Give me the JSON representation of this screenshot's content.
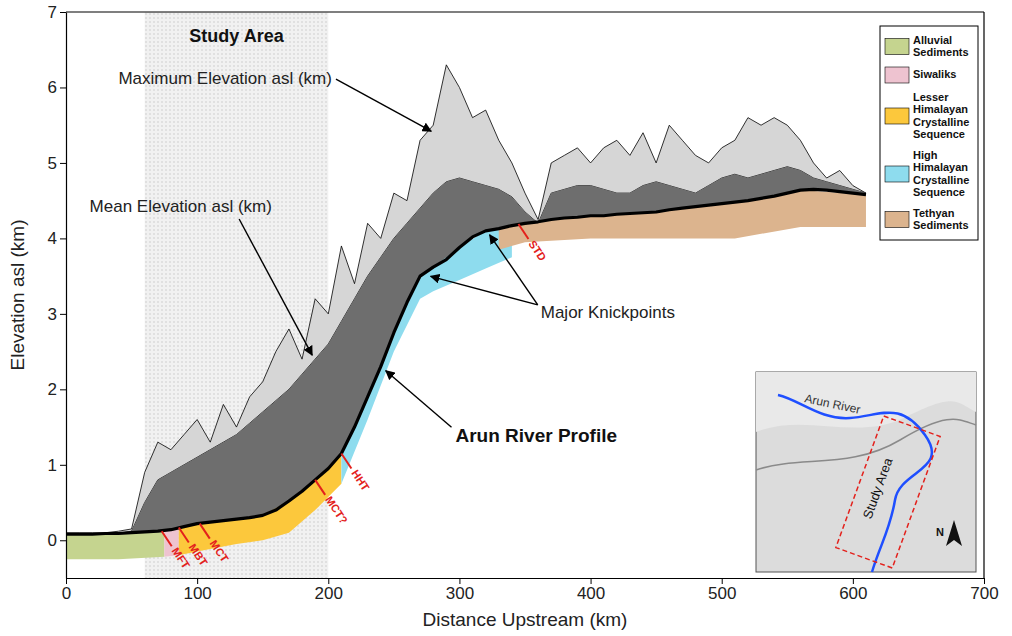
{
  "chart_data": {
    "type": "area",
    "xlabel": "Distance Upstream (km)",
    "ylabel": "Elevation asl (km)",
    "xlim": [
      0,
      700
    ],
    "ylim": [
      -0.5,
      7
    ],
    "xticks": [
      0,
      100,
      200,
      300,
      400,
      500,
      600,
      700
    ],
    "yticks": [
      0,
      1,
      2,
      3,
      4,
      5,
      6,
      7
    ],
    "legend": "top-right",
    "x": [
      0,
      10,
      20,
      30,
      40,
      50,
      60,
      70,
      80,
      90,
      100,
      110,
      120,
      130,
      140,
      150,
      160,
      170,
      180,
      190,
      200,
      210,
      220,
      230,
      240,
      250,
      260,
      270,
      280,
      290,
      300,
      310,
      320,
      330,
      340,
      350,
      360,
      370,
      380,
      390,
      400,
      410,
      420,
      430,
      440,
      450,
      460,
      470,
      480,
      490,
      500,
      510,
      520,
      530,
      540,
      550,
      560,
      570,
      580,
      590,
      600,
      610
    ],
    "series": [
      {
        "name": "Maximum Elevation asl (km)",
        "color": "#d6d6d6",
        "type": "area",
        "values": [
          0.1,
          0.1,
          0.1,
          0.1,
          0.12,
          0.15,
          0.9,
          1.3,
          1.2,
          1.4,
          1.6,
          1.3,
          1.8,
          1.5,
          1.9,
          2.1,
          2.5,
          2.8,
          2.4,
          3.2,
          3.0,
          3.9,
          3.4,
          4.2,
          4.0,
          4.6,
          4.5,
          5.3,
          5.5,
          6.3,
          6.0,
          5.6,
          5.7,
          5.3,
          5.0,
          4.6,
          4.25,
          5.0,
          5.1,
          5.2,
          5.0,
          5.2,
          5.3,
          5.1,
          5.4,
          5.0,
          5.5,
          5.3,
          5.1,
          5.0,
          5.2,
          5.3,
          5.6,
          5.5,
          5.6,
          5.5,
          5.3,
          5.0,
          4.8,
          4.9,
          4.7,
          4.6
        ]
      },
      {
        "name": "Mean Elevation asl (km)",
        "color": "#6e6e6e",
        "type": "area",
        "values": [
          0.08,
          0.08,
          0.08,
          0.09,
          0.09,
          0.12,
          0.5,
          0.8,
          0.9,
          1.0,
          1.1,
          1.2,
          1.3,
          1.4,
          1.55,
          1.7,
          1.85,
          2.0,
          2.2,
          2.4,
          2.6,
          2.9,
          3.2,
          3.5,
          3.75,
          4.0,
          4.2,
          4.4,
          4.6,
          4.75,
          4.8,
          4.75,
          4.7,
          4.65,
          4.55,
          4.35,
          4.2,
          4.6,
          4.65,
          4.7,
          4.7,
          4.65,
          4.6,
          4.6,
          4.7,
          4.75,
          4.7,
          4.65,
          4.6,
          4.7,
          4.8,
          4.85,
          4.8,
          4.85,
          4.9,
          4.95,
          4.9,
          4.8,
          4.75,
          4.7,
          4.65,
          4.6
        ]
      },
      {
        "name": "Arun River Profile",
        "color": "#000000",
        "type": "line",
        "values": [
          0.08,
          0.08,
          0.08,
          0.09,
          0.09,
          0.1,
          0.11,
          0.12,
          0.14,
          0.18,
          0.22,
          0.24,
          0.26,
          0.28,
          0.3,
          0.33,
          0.4,
          0.52,
          0.65,
          0.8,
          0.95,
          1.15,
          1.5,
          1.9,
          2.3,
          2.75,
          3.15,
          3.5,
          3.62,
          3.72,
          3.88,
          4.02,
          4.1,
          4.13,
          4.17,
          4.2,
          4.22,
          4.25,
          4.27,
          4.28,
          4.3,
          4.3,
          4.32,
          4.33,
          4.34,
          4.35,
          4.38,
          4.4,
          4.42,
          4.44,
          4.46,
          4.48,
          4.5,
          4.53,
          4.56,
          4.6,
          4.64,
          4.65,
          4.64,
          4.62,
          4.6,
          4.58
        ]
      }
    ],
    "units": [
      {
        "name": "Alluvial Sediments",
        "color": "#c5d48f",
        "x": [
          0,
          40,
          75
        ],
        "upper": [
          0.08,
          0.09,
          0.13
        ],
        "lower": [
          -0.25,
          -0.25,
          -0.22
        ]
      },
      {
        "name": "Siwaliks",
        "color": "#eec3d0",
        "x": [
          75,
          86
        ],
        "upper": [
          0.13,
          0.17
        ],
        "lower": [
          -0.22,
          -0.2
        ]
      },
      {
        "name": "Lesser Himalayan Crystalline Sequence",
        "color": "#fcc83c",
        "x": [
          86,
          100,
          130,
          150,
          170,
          190,
          210
        ],
        "upper": [
          0.17,
          0.22,
          0.28,
          0.33,
          0.52,
          0.8,
          1.15
        ],
        "lower": [
          -0.2,
          -0.15,
          -0.05,
          0.0,
          0.1,
          0.4,
          0.75
        ]
      },
      {
        "name": "High Himalayan Crystalline Sequence",
        "color": "#8edcee",
        "x": [
          210,
          230,
          250,
          270,
          280,
          300,
          320,
          340
        ],
        "upper": [
          1.15,
          1.9,
          2.75,
          3.5,
          3.62,
          3.88,
          4.1,
          4.17
        ],
        "lower": [
          0.75,
          1.6,
          2.5,
          3.2,
          3.3,
          3.45,
          3.6,
          3.75
        ]
      },
      {
        "name": "Tethyan Sediments",
        "color": "#dcb48e",
        "x": [
          330,
          350,
          400,
          450,
          500,
          510,
          560,
          610
        ],
        "upper": [
          4.13,
          4.2,
          4.3,
          4.35,
          4.46,
          4.48,
          4.64,
          4.58
        ],
        "lower": [
          3.85,
          3.95,
          4.0,
          4.0,
          4.0,
          4.0,
          4.15,
          4.15
        ]
      }
    ],
    "faults": [
      {
        "label": "MFT",
        "x": 73,
        "y": 0.12
      },
      {
        "label": "MBT",
        "x": 86,
        "y": 0.17
      },
      {
        "label": "MCT",
        "x": 102,
        "y": 0.22
      },
      {
        "label": "MCT?",
        "x": 190,
        "y": 0.8
      },
      {
        "label": "HHT",
        "x": 210,
        "y": 1.15
      },
      {
        "label": "STD",
        "x": 345,
        "y": 4.19
      }
    ],
    "knickpoints": {
      "label": "Major Knickpoints",
      "x": [
        275,
        320
      ],
      "y": [
        3.55,
        4.1
      ]
    },
    "study_area": {
      "label": "Study Area",
      "x": [
        60,
        200
      ]
    },
    "inset": {
      "river_label": "Arun River",
      "box_label": "Study Area",
      "north": "N"
    }
  }
}
